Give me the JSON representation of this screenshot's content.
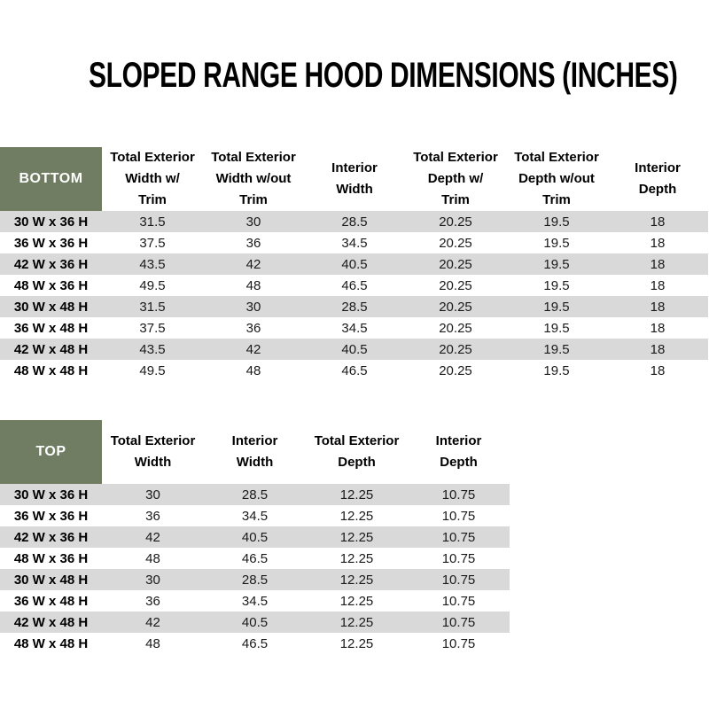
{
  "page": {
    "title": "SLOPED RANGE HOOD DIMENSIONS (INCHES)"
  },
  "colors": {
    "header_green": "#707d62",
    "stripe_gray": "#d9d9d9",
    "text_black": "#000000",
    "value_text": "#1a1a1a",
    "background": "#ffffff"
  },
  "bottom_table": {
    "corner_label": "BOTTOM",
    "columns": [
      "Total Exterior\nWidth w/\nTrim",
      "Total Exterior\nWidth w/out\nTrim",
      "Interior\nWidth",
      "Total Exterior\nDepth w/\nTrim",
      "Total Exterior\nDepth w/out\nTrim",
      "Interior\nDepth"
    ],
    "rows": [
      {
        "label": "30 W x 36 H",
        "values": [
          "31.5",
          "30",
          "28.5",
          "20.25",
          "19.5",
          "18"
        ]
      },
      {
        "label": "36 W x 36 H",
        "values": [
          "37.5",
          "36",
          "34.5",
          "20.25",
          "19.5",
          "18"
        ]
      },
      {
        "label": "42 W x 36 H",
        "values": [
          "43.5",
          "42",
          "40.5",
          "20.25",
          "19.5",
          "18"
        ]
      },
      {
        "label": "48 W x 36 H",
        "values": [
          "49.5",
          "48",
          "46.5",
          "20.25",
          "19.5",
          "18"
        ]
      },
      {
        "label": "30 W x 48 H",
        "values": [
          "31.5",
          "30",
          "28.5",
          "20.25",
          "19.5",
          "18"
        ]
      },
      {
        "label": "36 W x 48 H",
        "values": [
          "37.5",
          "36",
          "34.5",
          "20.25",
          "19.5",
          "18"
        ]
      },
      {
        "label": "42 W x 48 H",
        "values": [
          "43.5",
          "42",
          "40.5",
          "20.25",
          "19.5",
          "18"
        ]
      },
      {
        "label": "48 W x 48 H",
        "values": [
          "49.5",
          "48",
          "46.5",
          "20.25",
          "19.5",
          "18"
        ]
      }
    ]
  },
  "top_table": {
    "corner_label": "TOP",
    "columns": [
      "Total Exterior\nWidth",
      "Interior\nWidth",
      "Total Exterior\nDepth",
      "Interior\nDepth"
    ],
    "rows": [
      {
        "label": "30 W x 36 H",
        "values": [
          "30",
          "28.5",
          "12.25",
          "10.75"
        ]
      },
      {
        "label": "36 W x 36 H",
        "values": [
          "36",
          "34.5",
          "12.25",
          "10.75"
        ]
      },
      {
        "label": "42 W x 36 H",
        "values": [
          "42",
          "40.5",
          "12.25",
          "10.75"
        ]
      },
      {
        "label": "48 W x 36 H",
        "values": [
          "48",
          "46.5",
          "12.25",
          "10.75"
        ]
      },
      {
        "label": "30 W x 48 H",
        "values": [
          "30",
          "28.5",
          "12.25",
          "10.75"
        ]
      },
      {
        "label": "36 W x 48 H",
        "values": [
          "36",
          "34.5",
          "12.25",
          "10.75"
        ]
      },
      {
        "label": "42 W x 48 H",
        "values": [
          "42",
          "40.5",
          "12.25",
          "10.75"
        ]
      },
      {
        "label": "48 W x 48 H",
        "values": [
          "48",
          "46.5",
          "12.25",
          "10.75"
        ]
      }
    ]
  }
}
